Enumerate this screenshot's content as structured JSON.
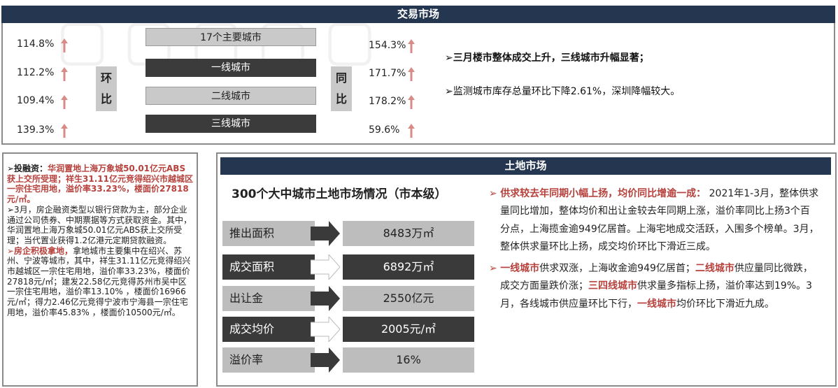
{
  "trade": {
    "header": "交易市场",
    "bars": [
      "17个主要城市",
      "一线城市",
      "二线城市",
      "三线城市"
    ],
    "mom_label": [
      "环",
      "比"
    ],
    "yoy_label": [
      "同",
      "比"
    ],
    "mom_values": [
      "114.8%",
      "112.2%",
      "109.4%",
      "139.3%"
    ],
    "yoy_values": [
      "154.3%",
      "171.7%",
      "178.2%",
      "59.6%"
    ],
    "note1": "➢三月楼市整体成交上升，三线城市升幅显著；",
    "note2": "➢监测城市库存总量环比下降2.61%，深圳降幅较大。"
  },
  "financing": {
    "p1_title": "➢投融资：",
    "p1_red": "华润置地上海万象城50.01亿元ABS获上交所受理；祥生31.11亿元竞得绍兴市越城区一宗住宅用地，溢价率33.23%，楼面价27818元/㎡。",
    "p2": "➢3月，房企融资类型以银行贷款为主，部分企业通过公司债券、中期票据等方式获取资金。其中，华润置地上海万象城50.01亿元ABS获上交所受理；当代置业获得1.2亿港元定期贷款融资。",
    "p3_red": "➢房企积极拿地，",
    "p3": "拿地城市主要集中在绍兴、苏州、宁波等城市，其中，祥生31.11亿元竞得绍兴市越城区一宗住宅用地，溢价率33.23%，楼面价27818元/㎡；建发22.58亿元竞得苏州市吴中区一宗住宅用地，溢价率13.10% ，楼面价16966元/㎡；得力2.46亿元竞得宁波市宁海县一宗住宅用地，溢价率45.83% ，楼面价10500元/㎡。"
  },
  "land": {
    "header": "土地市场",
    "subtitle": "300个大中城市土地市场情况（市本级）",
    "stats": [
      {
        "label": "推出面积",
        "value": "8483万㎡"
      },
      {
        "label": "成交面积",
        "value": "6892万㎡"
      },
      {
        "label": "出让金",
        "value": "2550亿元"
      },
      {
        "label": "成交均价",
        "value": "2005元/㎡"
      },
      {
        "label": "溢价率",
        "value": "16%"
      }
    ],
    "bullet": "➢",
    "p1_red": "供求较去年同期小幅上扬，均价同比增逾一成：",
    "p1": " 2021年1-3月，整体供求量同比增加，整体均价和出让金较去年同期上涨，溢价率同比上扬3个百分点，上海揽金逾949亿居首。上海宅地成交活跃，入围多个榜单。3月，整体供求量环比上扬，成交均价环比下滑近三成。",
    "p2_red1": "一线城市",
    "p2_a": "供求双涨，上海收金逾949亿居首；",
    "p2_red2": "二线城市",
    "p2_b": "供应量同比微跌，成交方面量跌价涨；",
    "p2_red3": "三四线城市",
    "p2_c": "供求量多指标上扬，溢价率达到19%。3月，各线城市供应量环比下行，",
    "p2_red4": "一线城市",
    "p2_d": "均价环比下滑近九成。"
  },
  "colors": {
    "header_bg": "#243650",
    "accent_red": "#b7413c",
    "arrow_red": "#d98b88"
  }
}
